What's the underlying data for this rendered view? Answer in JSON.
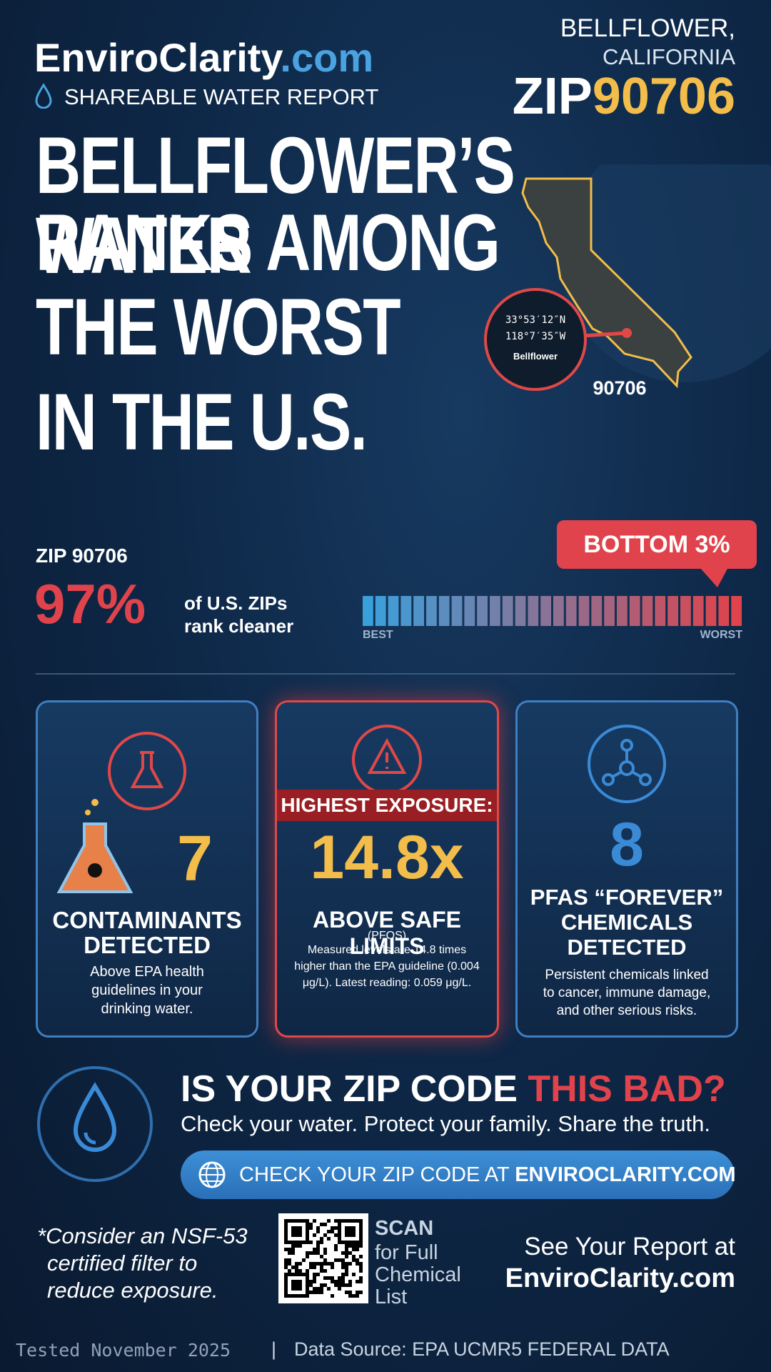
{
  "header": {
    "brand_main": "EnviroClarity",
    "brand_suffix": ".com",
    "subtitle": "SHAREABLE WATER REPORT",
    "city": "BELLFLOWER,",
    "state": "CALIFORNIA",
    "zip_prefix": "ZIP",
    "zip": "90706"
  },
  "headline": [
    "BELLFLOWER’S WATER",
    "RANKS AMONG",
    "THE WORST",
    "IN THE U.S."
  ],
  "map": {
    "lat": "33°53′12″N",
    "lon": "118°7′35″W",
    "place": "Bellflower",
    "zip": "90706"
  },
  "rank": {
    "zip_label": "ZIP 90706",
    "percent_label": "97%",
    "text": [
      "of U.S. ZIPs",
      "rank cleaner"
    ],
    "badge": "BOTTOM 3%",
    "best": "BEST",
    "worst": "WORST"
  },
  "cards": [
    {
      "value": "7",
      "title": [
        "CONTAMINANTS",
        "DETECTED"
      ],
      "desc": [
        "Above EPA health",
        "guidelines in your",
        "drinking water."
      ]
    },
    {
      "banner": "HIGHEST EXPOSURE:",
      "value": "14.8x",
      "title": [
        "ABOVE SAFE LIMITS"
      ],
      "sub": "(PFOS)",
      "desc": [
        "Measured levels are 14.8 times",
        "higher than the EPA guideline (0.004",
        "μg/L). Latest reading: 0.059 μg/L."
      ]
    },
    {
      "value": "8",
      "title": [
        "PFAS “FOREVER”",
        "CHEMICALS",
        "DETECTED"
      ],
      "desc": [
        "Persistent chemicals linked",
        "to cancer, immune damage,",
        "and other serious risks."
      ]
    }
  ],
  "cta": {
    "title": "IS YOUR ZIP CODE ",
    "title_highlight": "THIS BAD?",
    "subtitle": "Check your water. Protect your family. Share the truth.",
    "button": "CHECK YOUR ZIP CODE AT ",
    "button_highlight": "ENVIROCLARITY.COM"
  },
  "footer": {
    "note": [
      "*Consider an NSF-53",
      "certified filter to",
      "reduce exposure."
    ],
    "scan": "SCAN",
    "scan_text": [
      "for Full",
      "Chemical",
      "List"
    ],
    "see": "See Your Report at",
    "site": "EnviroClarity.com",
    "tested": "Tested November 2025",
    "separator": "|",
    "source": "Data Source: EPA UCMR5 FEDERAL DATA"
  }
}
